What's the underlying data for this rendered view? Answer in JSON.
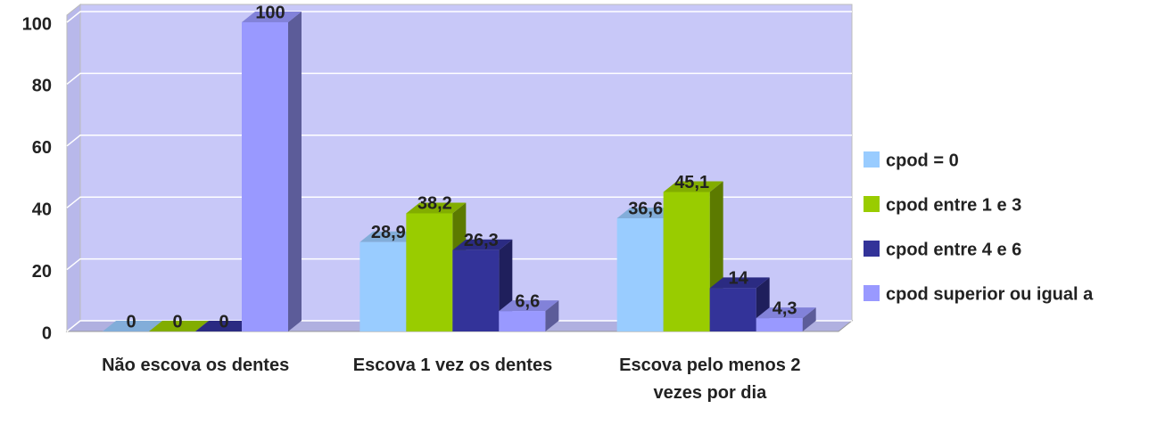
{
  "chart_data": {
    "type": "bar3d",
    "categories": [
      "Não escova os dentes",
      "Escova 1 vez os dentes",
      "Escova pelo menos 2 vezes por dia"
    ],
    "series": [
      {
        "name": "cpod = 0",
        "color": "#99ccff",
        "values": [
          0,
          28.9,
          36.6
        ],
        "value_labels": [
          "0",
          "28,9",
          "36,6"
        ]
      },
      {
        "name": "cpod entre 1 e 3",
        "color": "#99cc00",
        "values": [
          0,
          38.2,
          45.1
        ],
        "value_labels": [
          "0",
          "38,2",
          "45,1"
        ]
      },
      {
        "name": "cpod entre 4 e 6",
        "color": "#333399",
        "values": [
          0,
          26.3,
          14
        ],
        "value_labels": [
          "0",
          "26,3",
          "14"
        ]
      },
      {
        "name": "cpod superior ou igual a",
        "color": "#9999ff",
        "values": [
          100,
          6.6,
          4.3
        ],
        "value_labels": [
          "100",
          "6,6",
          "4,3"
        ]
      }
    ],
    "ylim": [
      0,
      100
    ],
    "yticks": [
      0,
      20,
      40,
      60,
      80,
      100
    ],
    "grid": true,
    "legend": "right"
  }
}
